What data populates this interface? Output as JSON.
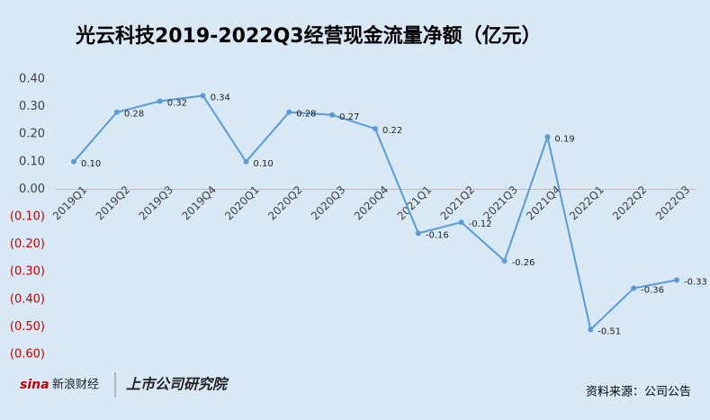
{
  "chart_data": {
    "type": "line",
    "title": "光云科技2019-2022Q3经营现金流量净额（亿元）",
    "categories": [
      "2019Q1",
      "2019Q2",
      "2019Q3",
      "2019Q4",
      "2020Q1",
      "2020Q2",
      "2020Q3",
      "2020Q4",
      "2021Q1",
      "2021Q2",
      "2021Q3",
      "2021Q4",
      "2022Q1",
      "2022Q2",
      "2022Q3"
    ],
    "series": [
      {
        "name": "经营现金流量净额",
        "color": "#5b9bd5",
        "values": [
          0.1,
          0.28,
          0.32,
          0.34,
          0.1,
          0.28,
          0.27,
          0.22,
          -0.16,
          -0.12,
          -0.26,
          0.19,
          -0.51,
          -0.36,
          -0.33
        ],
        "value_labels": [
          "0.10",
          "0.28",
          "0.32",
          "0.34",
          "0.10",
          "0.28",
          "0.27",
          "0.22",
          "-0.16",
          "-0.12",
          "-0.26",
          "0.19",
          "-0.51",
          "-0.36",
          "-0.33"
        ]
      }
    ],
    "ylim": [
      -0.6,
      0.4
    ],
    "yticks": [
      {
        "value": 0.4,
        "label": "0.40"
      },
      {
        "value": 0.3,
        "label": "0.30"
      },
      {
        "value": 0.2,
        "label": "0.20"
      },
      {
        "value": 0.1,
        "label": "0.10"
      },
      {
        "value": 0,
        "label": "0.00"
      },
      {
        "value": -0.1,
        "label": "(0.10)"
      },
      {
        "value": -0.2,
        "label": "(0.20)"
      },
      {
        "value": -0.3,
        "label": "(0.30)"
      },
      {
        "value": -0.4,
        "label": "(0.40)"
      },
      {
        "value": -0.5,
        "label": "(0.50)"
      },
      {
        "value": -0.6,
        "label": "(0.60)"
      }
    ],
    "negative_tick_color": "#c00000",
    "source": "资料来源：公司公告",
    "logo_sina": "sina",
    "logo_sina_cn": "新浪财经",
    "logo_institute": "上市公司研究院"
  }
}
